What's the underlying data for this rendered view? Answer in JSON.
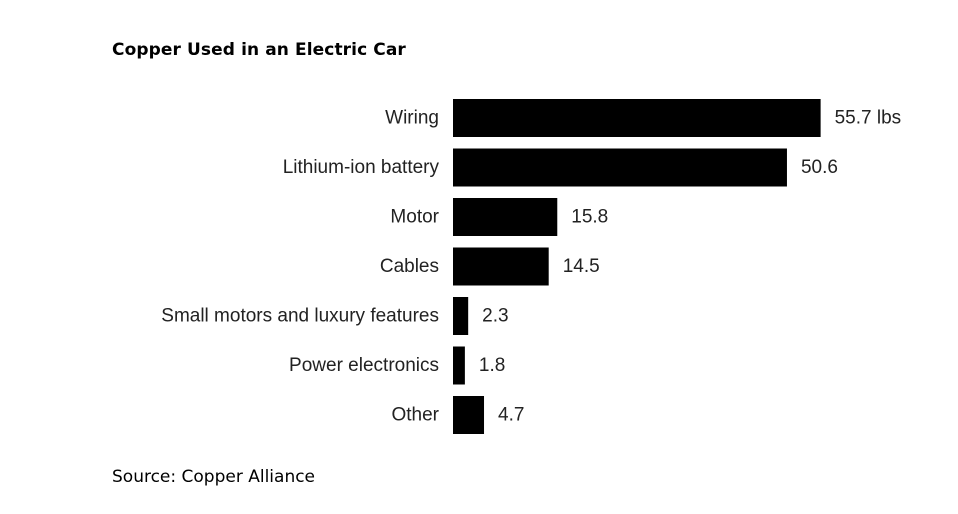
{
  "chart_data": {
    "type": "bar",
    "orientation": "horizontal",
    "title": "Copper Used in an Electric Car",
    "categories": [
      "Wiring",
      "Lithium-ion battery",
      "Motor",
      "Cables",
      "Small motors and luxury features",
      "Power electronics",
      "Other"
    ],
    "values": [
      55.7,
      50.6,
      15.8,
      14.5,
      2.3,
      1.8,
      4.7
    ],
    "value_labels": [
      "55.7 lbs",
      "50.6",
      "15.8",
      "14.5",
      "2.3",
      "1.8",
      "4.7"
    ],
    "bar_color": "#000000",
    "grid": false,
    "legend": "none"
  },
  "source": "Source: Copper Alliance"
}
